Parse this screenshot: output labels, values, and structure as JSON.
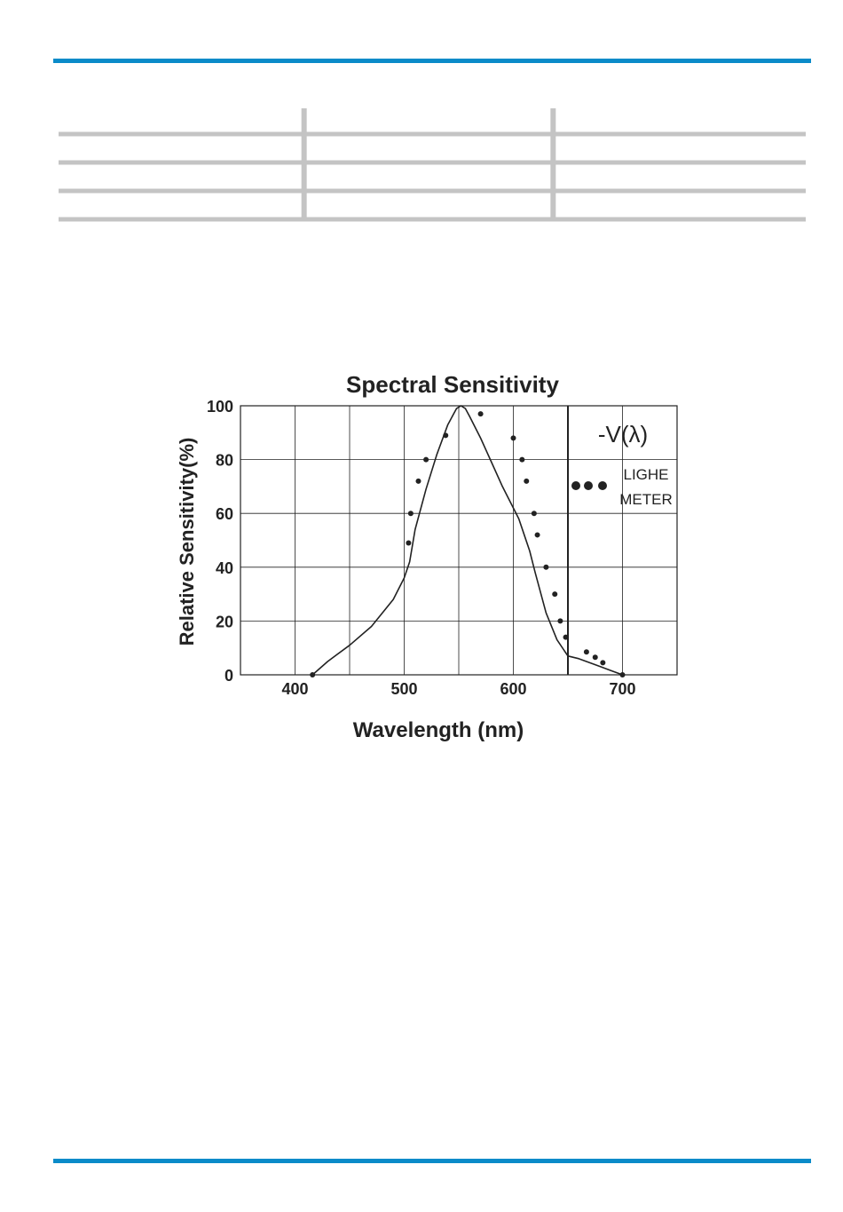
{
  "colors": {
    "rule": "#0a8bc9",
    "table_line": "#c4c4c4",
    "ink": "#222222"
  },
  "table": {
    "columns": 3,
    "rows": 3
  },
  "chart_data": {
    "type": "line",
    "title": "Spectral Sensitivity",
    "xlabel": "Wavelength  (nm)",
    "ylabel": "Relative Sensitivity(%)",
    "xlim": [
      350,
      750
    ],
    "ylim": [
      0,
      100
    ],
    "x_ticks": [
      400,
      500,
      600,
      700
    ],
    "y_ticks": [
      0,
      20,
      40,
      60,
      80,
      100
    ],
    "grid": true,
    "legend": [
      {
        "label": "-V(λ)",
        "marker": "line"
      },
      {
        "label": "LIGHE\nMETER",
        "marker": "dots"
      }
    ],
    "series": [
      {
        "name": "-V(λ)",
        "style": "line",
        "x": [
          416,
          430,
          450,
          470,
          490,
          500,
          505,
          510,
          520,
          530,
          540,
          548,
          552,
          556,
          560,
          570,
          580,
          590,
          600,
          605,
          610,
          615,
          620,
          630,
          640,
          650,
          660,
          670,
          680,
          690,
          700
        ],
        "y": [
          0,
          5,
          11,
          18,
          28,
          36,
          42,
          54,
          69,
          82,
          93,
          99,
          100,
          99,
          96,
          88,
          79,
          70,
          62,
          58,
          52,
          46,
          38,
          23,
          13,
          7,
          6,
          4.5,
          3,
          1.5,
          0
        ]
      },
      {
        "name": "LIGHE METER",
        "style": "dots",
        "x": [
          416,
          504,
          506,
          513,
          520,
          538,
          570,
          600,
          608,
          612,
          619,
          622,
          630,
          638,
          643,
          648,
          667,
          675,
          682,
          700
        ],
        "y": [
          0,
          49,
          60,
          72,
          80,
          89,
          97,
          88,
          80,
          72,
          60,
          52,
          40,
          30,
          20,
          14,
          8.5,
          6.5,
          4.5,
          0
        ]
      }
    ]
  }
}
